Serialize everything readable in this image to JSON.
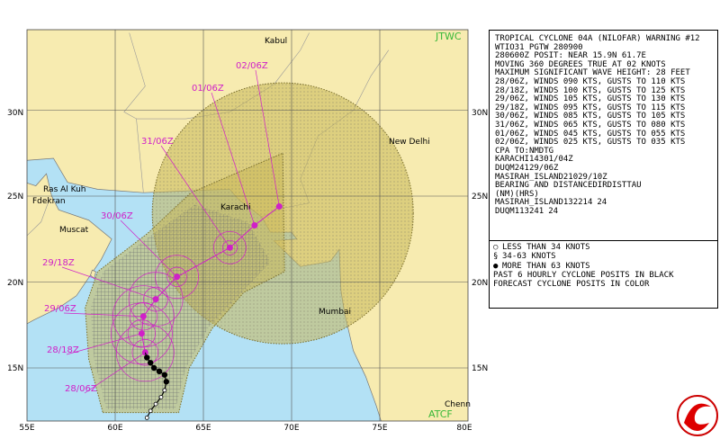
{
  "map": {
    "watermark_top": "JTWC",
    "watermark_bottom": "ATCF",
    "lat_labels": [
      "30N",
      "25N",
      "20N",
      "15N"
    ],
    "lon_labels": [
      "55E",
      "60E",
      "65E",
      "70E",
      "75E",
      "80E"
    ],
    "places": [
      "Kabul",
      "New Delhi",
      "Karachi",
      "Muscat",
      "Mumbai",
      "Ras Al Kuh",
      "Fdekran",
      "Chenn"
    ],
    "forecast_times": [
      "02/06Z",
      "01/06Z",
      "31/06Z",
      "30/06Z",
      "29/18Z",
      "29/06Z",
      "28/18Z",
      "28/06Z"
    ]
  },
  "warning": {
    "lines": [
      "TROPICAL CYCLONE 04A (NILOFAR) WARNING #12",
      "WTIO31 PGTW 280900",
      "280600Z POSIT: NEAR 15.9N 61.7E",
      "MOVING 360 DEGREES TRUE AT 02 KNOTS",
      "MAXIMUM SIGNIFICANT WAVE HEIGHT: 28 FEET",
      "28/06Z, WINDS 090 KTS, GUSTS TO 110 KTS",
      "28/18Z, WINDS 100 KTS, GUSTS TO 125 KTS",
      "29/06Z, WINDS 105 KTS, GUSTS TO 130 KTS",
      "29/18Z, WINDS 095 KTS, GUSTS TO 115 KTS",
      "30/06Z, WINDS 085 KTS, GUSTS TO 105 KTS",
      "31/06Z, WINDS 065 KTS, GUSTS TO 080 KTS",
      "01/06Z, WINDS 045 KTS, GUSTS TO 055 KTS",
      "02/06Z, WINDS 025 KTS, GUSTS TO 035 KTS"
    ],
    "cpa": {
      "header": [
        "CPA TO:",
        "NM",
        "DTG"
      ],
      "rows": [
        [
          "KARACHI",
          143,
          "01/04Z"
        ],
        [
          "DUQM",
          241,
          "29/06Z"
        ],
        [
          "MASIRAH_ISLAND",
          210,
          "29/10Z"
        ]
      ]
    },
    "bearing": {
      "header": [
        "BEARING AND DISTANCE",
        "DIR",
        "DIST",
        "TAU"
      ],
      "subheader": [
        "(NM)",
        "(HRS)"
      ],
      "rows": [
        [
          "MASIRAH_ISLAND",
          132,
          214,
          24
        ],
        [
          "DUQM",
          113,
          241,
          24
        ]
      ]
    }
  },
  "legend": {
    "lines": [
      "LESS THAN 34 KNOTS",
      "34-63 KNOTS",
      "MORE THAN 63 KNOTS",
      "PAST 6 HOURLY CYCLONE POSITS IN BLACK",
      "FORECAST CYCLONE POSITS IN COLOR"
    ]
  }
}
